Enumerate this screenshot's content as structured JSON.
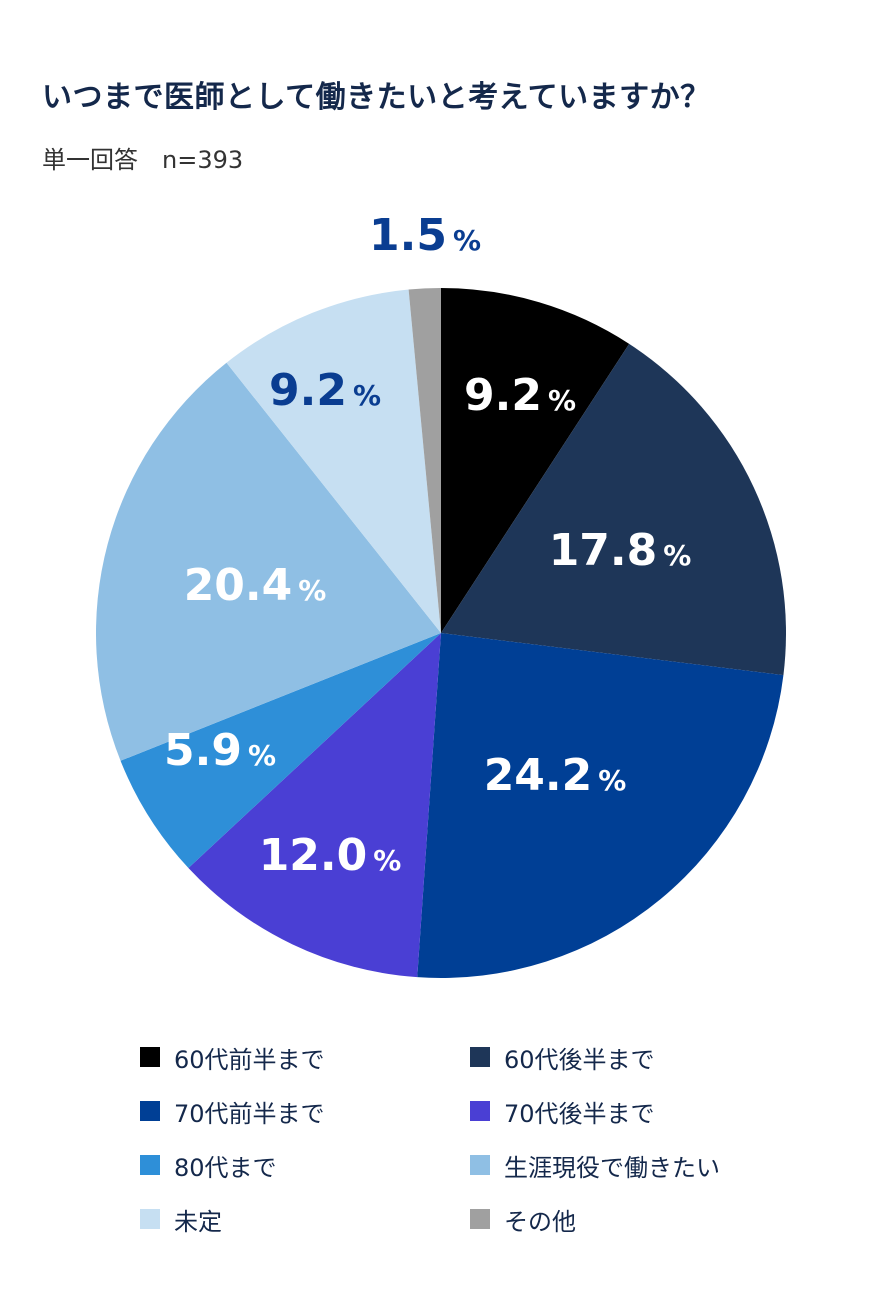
{
  "title": "いつまで医師として働きたいと考えていますか？",
  "subtitle": "単一回答　n=393",
  "chart_data": {
    "type": "pie",
    "title": "いつまで医師として働きたいと考えていますか？",
    "subtitle": "単一回答 n=393",
    "categories": [
      "60代前半まで",
      "60代後半まで",
      "70代前半まで",
      "70代後半まで",
      "80代まで",
      "生涯現役で働きたい",
      "未定",
      "その他"
    ],
    "values": [
      9.2,
      17.8,
      24.2,
      12.0,
      5.9,
      20.4,
      9.2,
      1.5
    ],
    "labels": [
      "9.2",
      "17.8",
      "24.2",
      "12.0",
      "5.9",
      "20.4",
      "9.2",
      "1.5"
    ],
    "colors": [
      "#000000",
      "#1e3658",
      "#003f95",
      "#4a3fd4",
      "#2e8fd8",
      "#8fbfe4",
      "#c6dff2",
      "#a0a0a0"
    ],
    "label_colors": [
      "#ffffff",
      "#ffffff",
      "#ffffff",
      "#ffffff",
      "#ffffff",
      "#ffffff",
      "#0a3d91",
      "#0a3d91"
    ],
    "legend_position": "bottom",
    "start_angle": "12 o'clock, clockwise"
  },
  "legend": [
    {
      "label": "60代前半まで",
      "color": "#000000"
    },
    {
      "label": "60代後半まで",
      "color": "#1e3658"
    },
    {
      "label": "70代前半まで",
      "color": "#003f95"
    },
    {
      "label": "70代後半まで",
      "color": "#4a3fd4"
    },
    {
      "label": "80代まで",
      "color": "#2e8fd8"
    },
    {
      "label": "生涯現役で働きたい",
      "color": "#8fbfe4"
    },
    {
      "label": "未定",
      "color": "#c6dff2"
    },
    {
      "label": "その他",
      "color": "#a0a0a0"
    }
  ]
}
